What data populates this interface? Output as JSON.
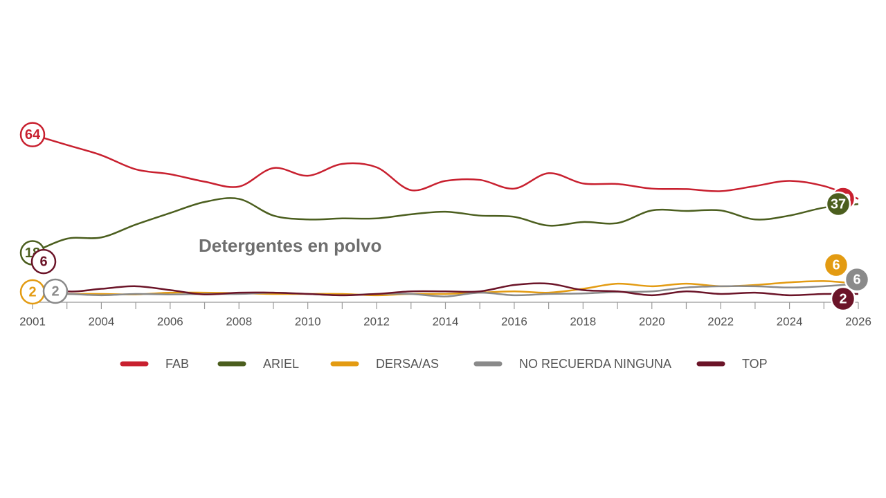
{
  "chart_data": {
    "type": "line",
    "title": "Detergentes en polvo",
    "categories": [
      "2001",
      null,
      "2004",
      null,
      "2006",
      null,
      "2008",
      null,
      "2010",
      null,
      "2012",
      null,
      "2014",
      null,
      "2016",
      null,
      "2018",
      null,
      "2020",
      null,
      "2022",
      null,
      "2024",
      null,
      "2026"
    ],
    "ylim": [
      0,
      70
    ],
    "series": [
      {
        "name": "FAB",
        "color": "#c8202f",
        "values": [
          64,
          60,
          56,
          50.5,
          48.6,
          45.7,
          43.8,
          51,
          48,
          52.6,
          51.3,
          42.4,
          46,
          46.4,
          43,
          49,
          45,
          44.8,
          43,
          42.8,
          42,
          44,
          46,
          44,
          39
        ]
      },
      {
        "name": "ARIEL",
        "color": "#4b5e1e",
        "values": [
          18,
          23.5,
          24,
          29,
          33.5,
          37.8,
          39,
          32.5,
          31,
          31.4,
          31.4,
          33,
          34,
          32.5,
          32,
          28.6,
          30,
          29.6,
          34.5,
          34.3,
          34.5,
          31,
          32.5,
          35.6,
          37
        ]
      },
      {
        "name": "DERSA/AS",
        "color": "#e39b12",
        "values": [
          2,
          2,
          2,
          1.8,
          2.5,
          2.5,
          2.3,
          2,
          2,
          2,
          1.5,
          2,
          2,
          2.5,
          3,
          2.5,
          4,
          6,
          5,
          6,
          5,
          5.5,
          6.5,
          7,
          6
        ]
      },
      {
        "name": "NO RECUERDA NINGUNA",
        "color": "#8a8a8a",
        "values": [
          2,
          2,
          1.5,
          2,
          1.8,
          2,
          2,
          2.5,
          2,
          1.5,
          2,
          2,
          1,
          2.5,
          1.5,
          2,
          2.2,
          2.8,
          3,
          4.5,
          5,
          5,
          4.5,
          5,
          6
        ]
      },
      {
        "name": "TOP",
        "color": "#6b1428",
        "values": [
          6,
          3,
          4,
          5,
          3.5,
          1.8,
          2.5,
          2.5,
          2,
          1.5,
          2,
          3,
          3,
          3,
          5.5,
          6,
          3.5,
          3,
          1.5,
          3,
          2,
          2.5,
          1.5,
          2,
          2
        ]
      }
    ]
  }
}
